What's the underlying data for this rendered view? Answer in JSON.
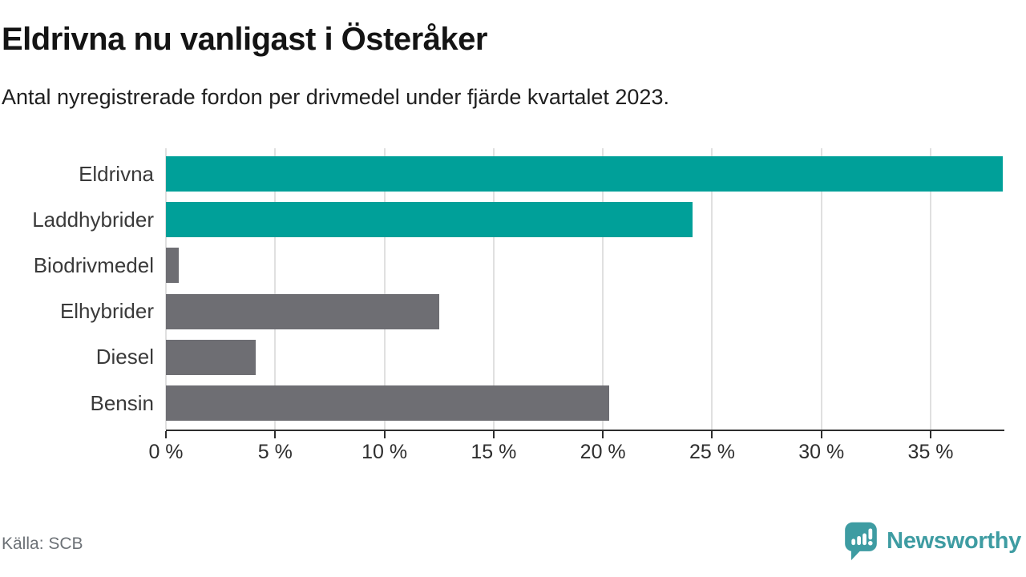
{
  "chart_data": {
    "type": "bar",
    "orientation": "horizontal",
    "title": "Eldrivna nu vanligast i Österåker",
    "subtitle": "Antal nyregistrerade fordon per drivmedel under fjärde kvartalet 2023.",
    "source": "Källa: SCB",
    "categories": [
      "Eldrivna",
      "Laddhybrider",
      "Biodrivmedel",
      "Elhybrider",
      "Diesel",
      "Bensin"
    ],
    "values": [
      38.3,
      24.1,
      0.6,
      12.5,
      4.1,
      20.3
    ],
    "unit": "%",
    "bar_colors": [
      "#00A099",
      "#00A099",
      "#6E6E73",
      "#6E6E73",
      "#6E6E73",
      "#6E6E73"
    ],
    "colors": {
      "highlight": "#00A099",
      "default": "#6E6E73",
      "grid": "#E0E0E0",
      "axis": "#2E2E2E"
    },
    "xlim": [
      0,
      38.3
    ],
    "x_ticks": [
      0,
      5,
      10,
      15,
      20,
      25,
      30,
      35
    ],
    "tick_suffix": " %",
    "grid": true,
    "legend": false
  },
  "brand": {
    "name": "Newsworthy",
    "color": "#3E9CA2",
    "icon": "newsworthy-speech-bubble-bar-chart-icon"
  }
}
